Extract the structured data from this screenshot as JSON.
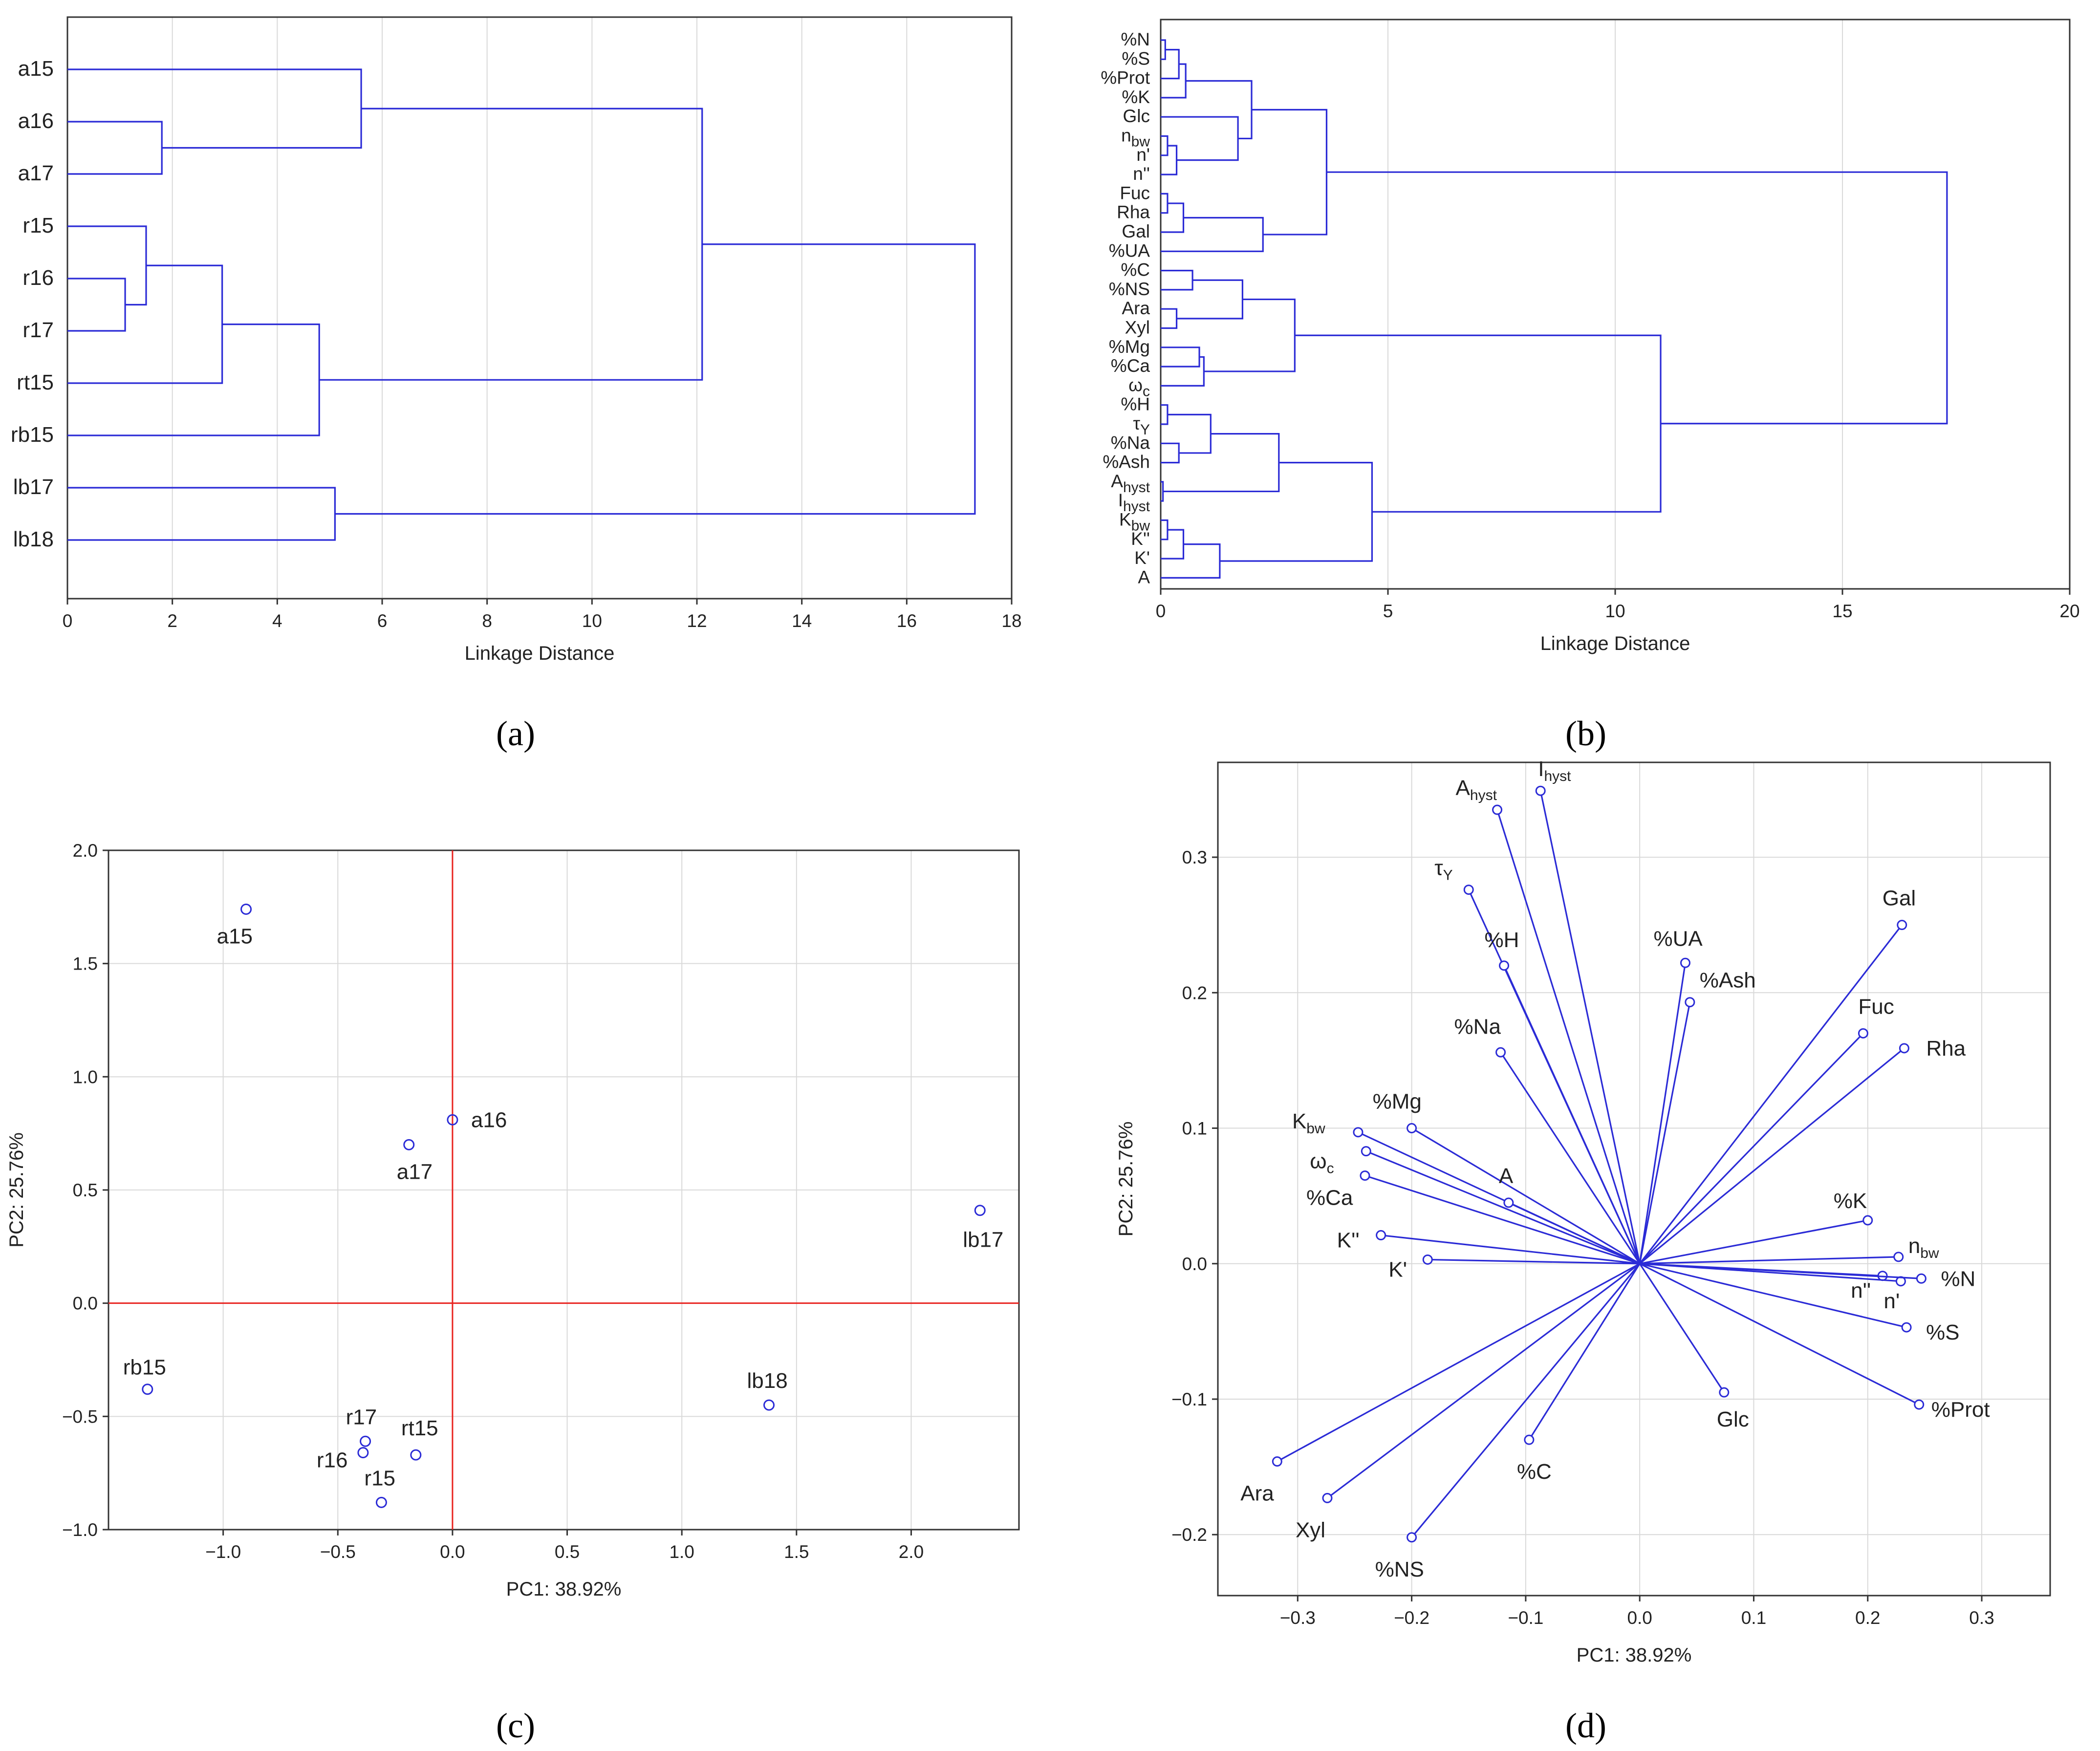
{
  "colors": {
    "tree": "#2b2bd6",
    "axis": "#333333",
    "grid": "#d9d9d9",
    "zero_lines": "#e8231f",
    "text": "#222222"
  },
  "chart_data": [
    {
      "panel": "a",
      "caption": "(a)",
      "type": "dendrogram",
      "orientation": "horizontal",
      "xlabel": "Linkage Distance",
      "xlim": [
        0,
        18
      ],
      "xticks": [
        "0",
        "2",
        "4",
        "6",
        "8",
        "10",
        "12",
        "14",
        "16",
        "18"
      ],
      "leaves": [
        "a15",
        "a16",
        "a17",
        "r15",
        "r16",
        "r17",
        "rt15",
        "rb15",
        "lb17",
        "lb18"
      ],
      "merges": [
        {
          "children": [
            "r16",
            "r17"
          ],
          "distance": 1.1
        },
        {
          "children": [
            "a16",
            "a17"
          ],
          "distance": 1.8
        },
        {
          "children": [
            "r15",
            "{r16,r17}"
          ],
          "distance": 1.5
        },
        {
          "children": [
            "{r15,r16,r17}",
            "rt15"
          ],
          "distance": 2.95
        },
        {
          "children": [
            "{r15,r16,r17,rt15}",
            "rb15"
          ],
          "distance": 4.8
        },
        {
          "children": [
            "lb17",
            "lb18"
          ],
          "distance": 5.1
        },
        {
          "children": [
            "a15",
            "{a16,a17}"
          ],
          "distance": 5.6
        },
        {
          "children": [
            "{a15,a16,a17}",
            "{r15,r16,r17,rt15,rb15}"
          ],
          "distance": 12.1
        },
        {
          "children": [
            "{a,r}",
            "{lb17,lb18}"
          ],
          "distance": 17.3
        }
      ],
      "grid": true
    },
    {
      "panel": "b",
      "caption": "(b)",
      "type": "dendrogram",
      "orientation": "horizontal",
      "xlabel": "Linkage Distance",
      "xlim": [
        0,
        20
      ],
      "xticks": [
        "0",
        "5",
        "10",
        "15",
        "20"
      ],
      "leaves": [
        {
          "main": "%N",
          "sub": ""
        },
        {
          "main": "%S",
          "sub": ""
        },
        {
          "main": "%Prot",
          "sub": ""
        },
        {
          "main": "%K",
          "sub": ""
        },
        {
          "main": "Glc",
          "sub": ""
        },
        {
          "main": "n",
          "sub": "bw"
        },
        {
          "main": "n'",
          "sub": ""
        },
        {
          "main": "n''",
          "sub": ""
        },
        {
          "main": "Fuc",
          "sub": ""
        },
        {
          "main": "Rha",
          "sub": ""
        },
        {
          "main": "Gal",
          "sub": ""
        },
        {
          "main": "%UA",
          "sub": ""
        },
        {
          "main": "%C",
          "sub": ""
        },
        {
          "main": "%NS",
          "sub": ""
        },
        {
          "main": "Ara",
          "sub": ""
        },
        {
          "main": "Xyl",
          "sub": ""
        },
        {
          "main": "%Mg",
          "sub": ""
        },
        {
          "main": "%Ca",
          "sub": ""
        },
        {
          "main": "ω",
          "sub": "c"
        },
        {
          "main": "%H",
          "sub": ""
        },
        {
          "main": "τ",
          "sub": "Y"
        },
        {
          "main": "%Na",
          "sub": ""
        },
        {
          "main": "%Ash",
          "sub": ""
        },
        {
          "main": "A",
          "sub": "hyst"
        },
        {
          "main": "I",
          "sub": "hyst"
        },
        {
          "main": "K",
          "sub": "bw"
        },
        {
          "main": "K''",
          "sub": ""
        },
        {
          "main": "K'",
          "sub": ""
        },
        {
          "main": "A",
          "sub": ""
        }
      ],
      "merges_note": "cluster heights in linkage-distance units",
      "merges": [
        {
          "children": [
            "%N",
            "%S"
          ],
          "distance": 0.1
        },
        {
          "children": [
            "{%N,%S}",
            "%Prot"
          ],
          "distance": 0.4
        },
        {
          "children": [
            "{%N,%S,%Prot}",
            "%K"
          ],
          "distance": 0.55
        },
        {
          "children": [
            "n_bw",
            "n'"
          ],
          "distance": 0.15
        },
        {
          "children": [
            "{n_bw,n'}",
            "n''"
          ],
          "distance": 0.35
        },
        {
          "children": [
            "Glc",
            "{n_bw,n',n''}"
          ],
          "distance": 1.7
        },
        {
          "children": [
            "{%N..%K}",
            "{Glc..n''}"
          ],
          "distance": 2.0
        },
        {
          "children": [
            "Fuc",
            "Rha"
          ],
          "distance": 0.15
        },
        {
          "children": [
            "{Fuc,Rha}",
            "Gal"
          ],
          "distance": 0.5
        },
        {
          "children": [
            "{Fuc,Rha,Gal}",
            "%UA"
          ],
          "distance": 2.25
        },
        {
          "children": [
            "{%N..n''}",
            "{Fuc..%UA}"
          ],
          "distance": 3.65
        },
        {
          "children": [
            "%C",
            "%NS"
          ],
          "distance": 0.7
        },
        {
          "children": [
            "Ara",
            "Xyl"
          ],
          "distance": 0.35
        },
        {
          "children": [
            "{%C,%NS}",
            "{Ara,Xyl}"
          ],
          "distance": 1.8
        },
        {
          "children": [
            "%Mg",
            "%Ca"
          ],
          "distance": 0.85
        },
        {
          "children": [
            "{%Mg,%Ca}",
            "ω_c"
          ],
          "distance": 0.95
        },
        {
          "children": [
            "{%C..Xyl}",
            "{%Mg,%Ca,ω_c}"
          ],
          "distance": 2.95
        },
        {
          "children": [
            "%H",
            "τ_Y"
          ],
          "distance": 0.15
        },
        {
          "children": [
            "%Na",
            "%Ash"
          ],
          "distance": 0.4
        },
        {
          "children": [
            "{%H,τ_Y}",
            "{%Na,%Ash}"
          ],
          "distance": 1.1
        },
        {
          "children": [
            "A_hyst",
            "I_hyst"
          ],
          "distance": 0.05
        },
        {
          "children": [
            "{%H..%Ash}",
            "{A_hyst,I_hyst}"
          ],
          "distance": 2.6
        },
        {
          "children": [
            "K_bw",
            "K''"
          ],
          "distance": 0.15
        },
        {
          "children": [
            "{K_bw,K''}",
            "K'"
          ],
          "distance": 0.5
        },
        {
          "children": [
            "{K_bw,K'',K'}",
            "A"
          ],
          "distance": 1.3
        },
        {
          "children": [
            "{%H..I_hyst}",
            "{K_bw..A}"
          ],
          "distance": 4.65
        },
        {
          "children": [
            "{%C..ω_c}",
            "{%H..A}"
          ],
          "distance": 11.0
        },
        {
          "children": [
            "{%N..%UA}",
            "{%C..A}"
          ],
          "distance": 17.3
        }
      ],
      "grid": true
    },
    {
      "panel": "c",
      "caption": "(c)",
      "type": "scatter",
      "xlabel": "PC1: 38.92%",
      "ylabel": "PC2: 25.76%",
      "xlim": [
        -1.5,
        2.47
      ],
      "ylim": [
        -1.0,
        2.0
      ],
      "xticks": [
        "−1.0",
        "−0.5",
        "0.0",
        "0.5",
        "1.0",
        "1.5",
        "2.0"
      ],
      "yticks": [
        "−1.0",
        "−0.5",
        "0.0",
        "0.5",
        "1.0",
        "1.5",
        "2.0"
      ],
      "points": [
        {
          "label": "a15",
          "x": -0.9,
          "y": 1.74
        },
        {
          "label": "a16",
          "x": 0.0,
          "y": 0.81
        },
        {
          "label": "a17",
          "x": -0.19,
          "y": 0.7
        },
        {
          "label": "lb17",
          "x": 2.3,
          "y": 0.41
        },
        {
          "label": "lb18",
          "x": 1.38,
          "y": -0.45
        },
        {
          "label": "rb15",
          "x": -1.33,
          "y": -0.38
        },
        {
          "label": "r17",
          "x": -0.38,
          "y": -0.61
        },
        {
          "label": "r16",
          "x": -0.39,
          "y": -0.66
        },
        {
          "label": "rt15",
          "x": -0.16,
          "y": -0.67
        },
        {
          "label": "r15",
          "x": -0.31,
          "y": -0.88
        }
      ],
      "reference_lines": {
        "x": 0,
        "y": 0
      },
      "grid": true
    },
    {
      "panel": "d",
      "caption": "(d)",
      "type": "scatter",
      "subtype": "loading-vectors",
      "xlabel": "PC1: 38.92%",
      "ylabel": "PC2: 25.76%",
      "xlim": [
        -0.37,
        0.36
      ],
      "ylim": [
        -0.245,
        0.37
      ],
      "xticks": [
        "−0.3",
        "−0.2",
        "−0.1",
        "0.0",
        "0.1",
        "0.2",
        "0.3"
      ],
      "yticks": [
        "−0.2",
        "−0.1",
        "0.0",
        "0.1",
        "0.2",
        "0.3"
      ],
      "origin": [
        0,
        0
      ],
      "points": [
        {
          "label": "I",
          "sub": "hyst",
          "x": -0.087,
          "y": 0.349
        },
        {
          "label": "A",
          "sub": "hyst",
          "x": -0.125,
          "y": 0.335
        },
        {
          "label": "τ",
          "sub": "Y",
          "x": -0.15,
          "y": 0.276
        },
        {
          "label": "%H",
          "sub": "",
          "x": -0.119,
          "y": 0.22
        },
        {
          "label": "%Na",
          "sub": "",
          "x": -0.122,
          "y": 0.156
        },
        {
          "label": "%UA",
          "sub": "",
          "x": 0.04,
          "y": 0.222
        },
        {
          "label": "%Ash",
          "sub": "",
          "x": 0.044,
          "y": 0.193
        },
        {
          "label": "Gal",
          "sub": "",
          "x": 0.23,
          "y": 0.25
        },
        {
          "label": "Fuc",
          "sub": "",
          "x": 0.196,
          "y": 0.17
        },
        {
          "label": "Rha",
          "sub": "",
          "x": 0.232,
          "y": 0.159
        },
        {
          "label": "K",
          "sub": "bw",
          "x": -0.247,
          "y": 0.097
        },
        {
          "label": "%Mg",
          "sub": "",
          "x": -0.2,
          "y": 0.1
        },
        {
          "label": "ω",
          "sub": "c",
          "x": -0.24,
          "y": 0.083
        },
        {
          "label": "%Ca",
          "sub": "",
          "x": -0.241,
          "y": 0.065
        },
        {
          "label": "A",
          "sub": "",
          "x": -0.115,
          "y": 0.045
        },
        {
          "label": "K''",
          "sub": "",
          "x": -0.227,
          "y": 0.021
        },
        {
          "label": "K'",
          "sub": "",
          "x": -0.186,
          "y": 0.003
        },
        {
          "label": "%K",
          "sub": "",
          "x": 0.2,
          "y": 0.032
        },
        {
          "label": "n",
          "sub": "bw",
          "x": 0.227,
          "y": 0.005
        },
        {
          "label": "n''",
          "sub": "",
          "x": 0.213,
          "y": -0.009
        },
        {
          "label": "n'",
          "sub": "",
          "x": 0.229,
          "y": -0.013
        },
        {
          "label": "%N",
          "sub": "",
          "x": 0.247,
          "y": -0.011
        },
        {
          "label": "%S",
          "sub": "",
          "x": 0.234,
          "y": -0.047
        },
        {
          "label": "%Prot",
          "sub": "",
          "x": 0.245,
          "y": -0.104
        },
        {
          "label": "Glc",
          "sub": "",
          "x": 0.074,
          "y": -0.095
        },
        {
          "label": "%C",
          "sub": "",
          "x": -0.097,
          "y": -0.13
        },
        {
          "label": "%NS",
          "sub": "",
          "x": -0.2,
          "y": -0.202
        },
        {
          "label": "Xyl",
          "sub": "",
          "x": -0.274,
          "y": -0.173
        },
        {
          "label": "Ara",
          "sub": "",
          "x": -0.318,
          "y": -0.146
        }
      ],
      "grid": true
    }
  ]
}
